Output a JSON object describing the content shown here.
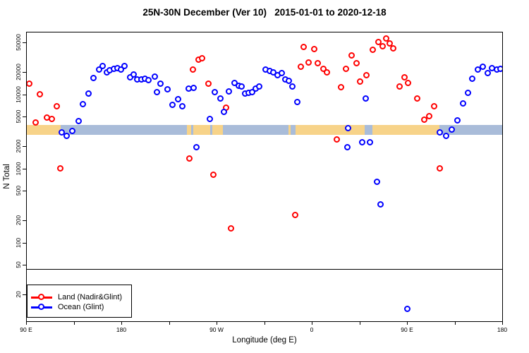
{
  "title": "25N-30N December (Ver 10)   2015-01-01 to 2020-12-18",
  "chart_data": {
    "type": "scatter",
    "title": "25N-30N December (Ver 10)   2015-01-01 to 2020-12-18",
    "xlabel": "Longitude (deg E)",
    "ylabel": "N Total",
    "x_axis": {
      "description": "Longitude axis starting at 90E wrapping eastward 450 degrees",
      "span_deg": 450,
      "tick_interval_deg": 45,
      "labels": [
        {
          "deg": 0,
          "text": "90 E"
        },
        {
          "deg": 90,
          "text": "180"
        },
        {
          "deg": 180,
          "text": "90 W"
        },
        {
          "deg": 270,
          "text": "0"
        },
        {
          "deg": 360,
          "text": "90 E"
        },
        {
          "deg": 450,
          "text": "180"
        }
      ]
    },
    "y_axis": {
      "scale": "log",
      "tick_values": [
        20,
        50,
        100,
        200,
        500,
        1000,
        2000,
        5000,
        10000,
        20000,
        50000
      ]
    },
    "threshold_line_n": 45,
    "map_band": {
      "n_top": 3900,
      "n_bottom": 2900,
      "land_color": "#f7d389",
      "ocean_color": "#a9bcd9",
      "segments": [
        {
          "start_deg": 0,
          "end_deg": 32,
          "surface": "land"
        },
        {
          "start_deg": 32,
          "end_deg": 151.5,
          "surface": "ocean"
        },
        {
          "start_deg": 151.5,
          "end_deg": 155.5,
          "surface": "land"
        },
        {
          "start_deg": 155.5,
          "end_deg": 157.5,
          "surface": "ocean"
        },
        {
          "start_deg": 157.5,
          "end_deg": 173.5,
          "surface": "land"
        },
        {
          "start_deg": 173.5,
          "end_deg": 175.5,
          "surface": "ocean"
        },
        {
          "start_deg": 175.5,
          "end_deg": 185.5,
          "surface": "land"
        },
        {
          "start_deg": 185.5,
          "end_deg": 247.5,
          "surface": "ocean"
        },
        {
          "start_deg": 247.5,
          "end_deg": 249.5,
          "surface": "land"
        },
        {
          "start_deg": 249.5,
          "end_deg": 254,
          "surface": "ocean"
        },
        {
          "start_deg": 254,
          "end_deg": 319,
          "surface": "land"
        },
        {
          "start_deg": 319,
          "end_deg": 326.5,
          "surface": "ocean"
        },
        {
          "start_deg": 326.5,
          "end_deg": 390,
          "surface": "land"
        },
        {
          "start_deg": 390,
          "end_deg": 450,
          "surface": "ocean"
        }
      ]
    },
    "legend_position": "bottomleft",
    "series": [
      {
        "name": "Land (Nadir&Glint)",
        "color": "#ff0000",
        "marker": "open-circle",
        "points": [
          [
            2.5,
            14100
          ],
          [
            12.5,
            10100
          ],
          [
            28.5,
            7000
          ],
          [
            19.5,
            4900
          ],
          [
            24,
            4700
          ],
          [
            8.5,
            4200
          ],
          [
            32,
            1010
          ],
          [
            157.5,
            21800
          ],
          [
            162.5,
            29600
          ],
          [
            166,
            30900
          ],
          [
            172,
            14100
          ],
          [
            188.5,
            6700
          ],
          [
            154,
            1370
          ],
          [
            176.5,
            830
          ],
          [
            193.5,
            157
          ],
          [
            254,
            240
          ],
          [
            259.5,
            23800
          ],
          [
            262,
            43900
          ],
          [
            266.5,
            27100
          ],
          [
            272,
            41100
          ],
          [
            275.5,
            26500
          ],
          [
            280.5,
            22300
          ],
          [
            284,
            20000
          ],
          [
            293.5,
            2500
          ],
          [
            297.5,
            12600
          ],
          [
            302,
            22300
          ],
          [
            307.5,
            33800
          ],
          [
            312,
            26500
          ],
          [
            315.5,
            15000
          ],
          [
            321.5,
            18300
          ],
          [
            327.5,
            40300
          ],
          [
            332.5,
            51300
          ],
          [
            336.5,
            44900
          ],
          [
            340,
            57100
          ],
          [
            343.5,
            49000
          ],
          [
            346.5,
            42100
          ],
          [
            352.5,
            12900
          ],
          [
            357.5,
            17100
          ],
          [
            360.5,
            14400
          ],
          [
            369.5,
            8900
          ],
          [
            376,
            4600
          ],
          [
            380.5,
            5100
          ],
          [
            385.5,
            7000
          ],
          [
            390.5,
            1010
          ]
        ]
      },
      {
        "name": "Ocean (Glint)",
        "color": "#0000ff",
        "marker": "open-circle",
        "points": [
          [
            33.5,
            3100
          ],
          [
            38,
            2800
          ],
          [
            43.5,
            3200
          ],
          [
            49.5,
            4400
          ],
          [
            53.5,
            7400
          ],
          [
            58.5,
            10300
          ],
          [
            63.5,
            16700
          ],
          [
            68.5,
            21800
          ],
          [
            72,
            24300
          ],
          [
            76,
            20000
          ],
          [
            78.5,
            21300
          ],
          [
            82.5,
            22300
          ],
          [
            86,
            22700
          ],
          [
            89.5,
            21800
          ],
          [
            92.5,
            24300
          ],
          [
            98,
            17100
          ],
          [
            101.5,
            18700
          ],
          [
            104.5,
            16000
          ],
          [
            108.5,
            16000
          ],
          [
            112,
            16400
          ],
          [
            115.5,
            15700
          ],
          [
            121.5,
            17500
          ],
          [
            123.5,
            10800
          ],
          [
            126.5,
            14100
          ],
          [
            133.5,
            11800
          ],
          [
            138,
            7300
          ],
          [
            143.5,
            8700
          ],
          [
            147.5,
            7000
          ],
          [
            153.5,
            12000
          ],
          [
            158,
            12300
          ],
          [
            160.5,
            1950
          ],
          [
            173.5,
            4700
          ],
          [
            178,
            10800
          ],
          [
            183.5,
            8900
          ],
          [
            186.5,
            5800
          ],
          [
            191.5,
            11000
          ],
          [
            196.5,
            14400
          ],
          [
            200.5,
            13200
          ],
          [
            203.5,
            12900
          ],
          [
            206.5,
            10300
          ],
          [
            210,
            10600
          ],
          [
            213.5,
            10800
          ],
          [
            216.5,
            12000
          ],
          [
            220,
            12900
          ],
          [
            226,
            21800
          ],
          [
            230,
            20800
          ],
          [
            233.5,
            20000
          ],
          [
            237.5,
            18300
          ],
          [
            241.5,
            19500
          ],
          [
            244.5,
            16000
          ],
          [
            248,
            15300
          ],
          [
            251.5,
            12900
          ],
          [
            256,
            7900
          ],
          [
            303.5,
            1950
          ],
          [
            304,
            3500
          ],
          [
            317.5,
            2300
          ],
          [
            320.5,
            8900
          ],
          [
            324.5,
            2300
          ],
          [
            331.5,
            670
          ],
          [
            334.5,
            330
          ],
          [
            360,
            13
          ],
          [
            390.5,
            3100
          ],
          [
            396.5,
            2800
          ],
          [
            402,
            3400
          ],
          [
            407.5,
            4500
          ],
          [
            412.5,
            7600
          ],
          [
            417.5,
            10600
          ],
          [
            421.5,
            16400
          ],
          [
            426.5,
            21800
          ],
          [
            431.5,
            23800
          ],
          [
            436,
            19500
          ],
          [
            440,
            22700
          ],
          [
            444.5,
            21800
          ],
          [
            448,
            22300
          ]
        ]
      }
    ]
  }
}
